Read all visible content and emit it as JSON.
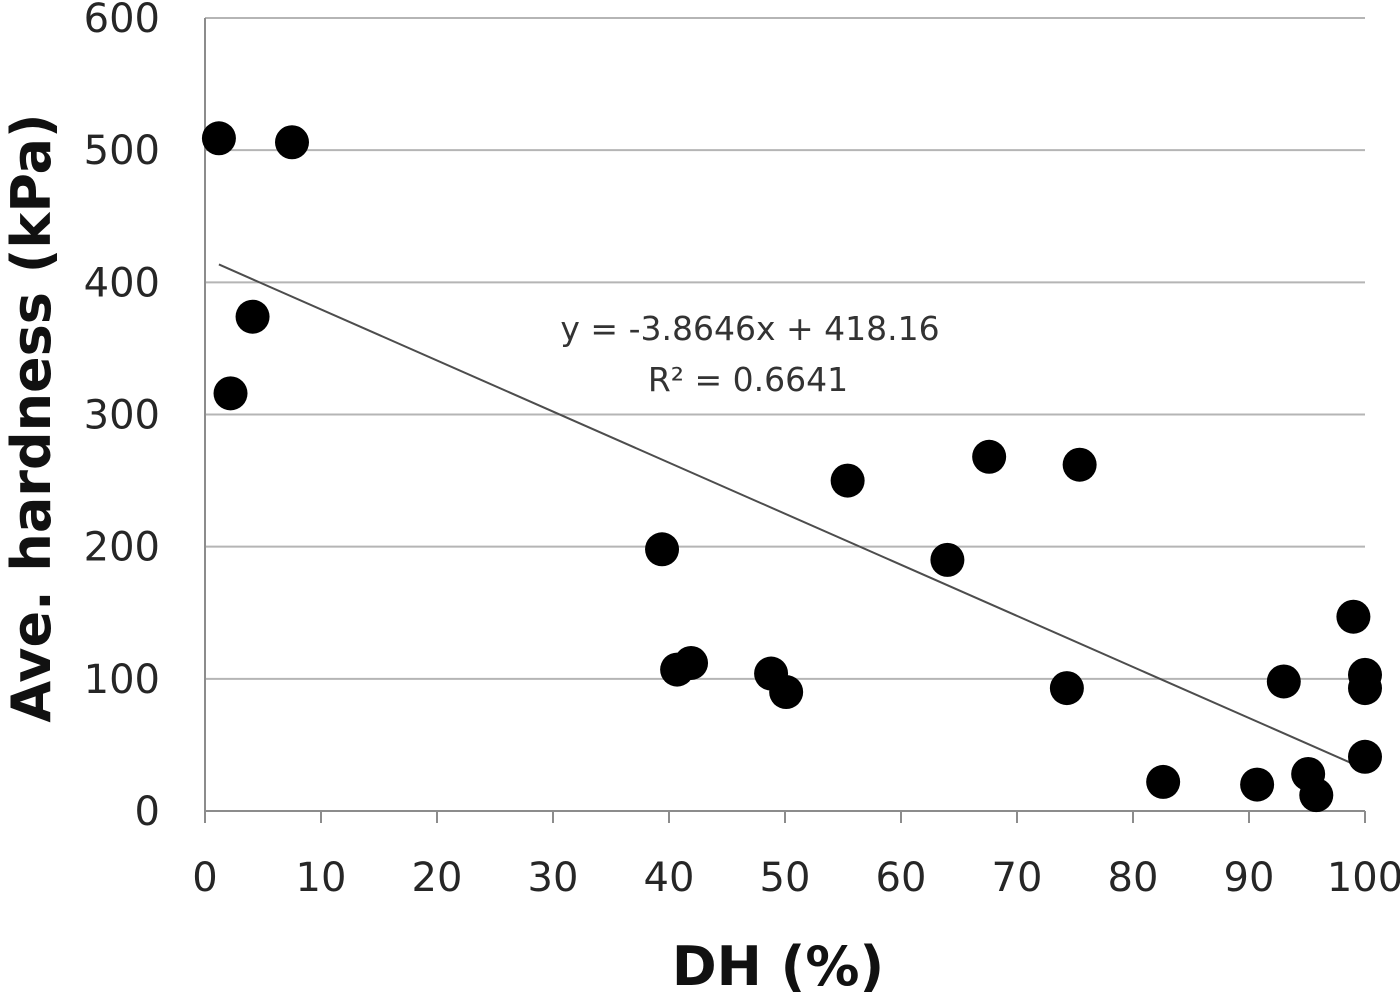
{
  "chart_data": {
    "type": "scatter",
    "xlabel": "DH (%)",
    "ylabel": "Ave. hardness (kPa)",
    "xlim": [
      0,
      100
    ],
    "ylim": [
      0,
      600
    ],
    "x_ticks": [
      "0",
      "10",
      "20",
      "30",
      "40",
      "50",
      "60",
      "70",
      "80",
      "90",
      "100"
    ],
    "y_ticks": [
      "0",
      "100",
      "200",
      "300",
      "400",
      "500",
      "600"
    ],
    "grid": "horizontal",
    "point_color": "#000000",
    "series": [
      {
        "points": [
          {
            "x": 1.2,
            "y": 509
          },
          {
            "x": 7.5,
            "y": 506
          },
          {
            "x": 4.1,
            "y": 374
          },
          {
            "x": 2.2,
            "y": 316
          },
          {
            "x": 39.4,
            "y": 198
          },
          {
            "x": 40.7,
            "y": 107
          },
          {
            "x": 41.9,
            "y": 112
          },
          {
            "x": 48.8,
            "y": 104
          },
          {
            "x": 50.1,
            "y": 90
          },
          {
            "x": 55.4,
            "y": 250
          },
          {
            "x": 64.0,
            "y": 190
          },
          {
            "x": 67.6,
            "y": 268
          },
          {
            "x": 75.4,
            "y": 262
          },
          {
            "x": 74.3,
            "y": 93
          },
          {
            "x": 82.6,
            "y": 22
          },
          {
            "x": 90.7,
            "y": 20
          },
          {
            "x": 93.0,
            "y": 98
          },
          {
            "x": 95.1,
            "y": 28
          },
          {
            "x": 95.8,
            "y": 12
          },
          {
            "x": 99.0,
            "y": 147
          },
          {
            "x": 100.0,
            "y": 103
          },
          {
            "x": 100.0,
            "y": 93
          },
          {
            "x": 100.0,
            "y": 41
          }
        ]
      }
    ],
    "trendline": {
      "slope": -3.8646,
      "intercept": 418.16,
      "x_start": 1.2,
      "x_end": 99.6,
      "equation": "y = -3.8646x + 418.16",
      "r_squared": "R² = 0.6641"
    }
  }
}
